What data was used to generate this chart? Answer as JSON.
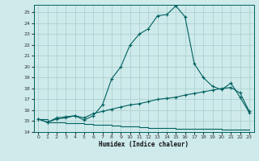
{
  "xlabel": "Humidex (Indice chaleur)",
  "xlim": [
    -0.5,
    23.5
  ],
  "ylim": [
    14.0,
    25.7
  ],
  "yticks": [
    14,
    15,
    16,
    17,
    18,
    19,
    20,
    21,
    22,
    23,
    24,
    25
  ],
  "xticks": [
    0,
    1,
    2,
    3,
    4,
    5,
    6,
    7,
    8,
    9,
    10,
    11,
    12,
    13,
    14,
    15,
    16,
    17,
    18,
    19,
    20,
    21,
    22,
    23
  ],
  "bg_color": "#ceeaea",
  "grid_color": "#a8cccc",
  "line_color": "#006060",
  "line1_x": [
    0,
    1,
    2,
    3,
    4,
    5,
    6,
    7,
    8,
    9,
    10,
    11,
    12,
    13,
    14,
    15,
    16,
    17,
    18,
    19,
    20,
    21,
    22,
    23
  ],
  "line1_y": [
    15.2,
    14.9,
    15.3,
    15.4,
    15.5,
    15.1,
    15.5,
    16.5,
    18.9,
    20.0,
    22.0,
    23.0,
    23.5,
    24.7,
    24.8,
    25.6,
    24.6,
    20.3,
    19.0,
    18.2,
    17.9,
    18.5,
    17.2,
    15.8
  ],
  "line2_x": [
    0,
    1,
    2,
    3,
    4,
    5,
    6,
    7,
    8,
    9,
    10,
    11,
    12,
    13,
    14,
    15,
    16,
    17,
    18,
    19,
    20,
    21,
    22,
    23
  ],
  "line2_y": [
    15.2,
    14.9,
    15.2,
    15.3,
    15.5,
    15.3,
    15.7,
    15.9,
    16.1,
    16.3,
    16.5,
    16.6,
    16.8,
    17.0,
    17.1,
    17.2,
    17.4,
    17.55,
    17.7,
    17.85,
    18.0,
    18.1,
    17.6,
    15.9
  ],
  "line3_x": [
    0,
    1,
    2,
    3,
    4,
    5,
    6,
    7,
    8,
    9,
    10,
    11,
    12,
    13,
    14,
    15,
    16,
    17,
    18,
    19,
    20,
    21,
    22,
    23
  ],
  "line3_y": [
    15.2,
    14.9,
    14.9,
    14.85,
    14.8,
    14.75,
    14.7,
    14.65,
    14.6,
    14.55,
    14.5,
    14.45,
    14.4,
    14.4,
    14.35,
    14.3,
    14.3,
    14.3,
    14.28,
    14.28,
    14.25,
    14.25,
    14.25,
    14.2
  ]
}
